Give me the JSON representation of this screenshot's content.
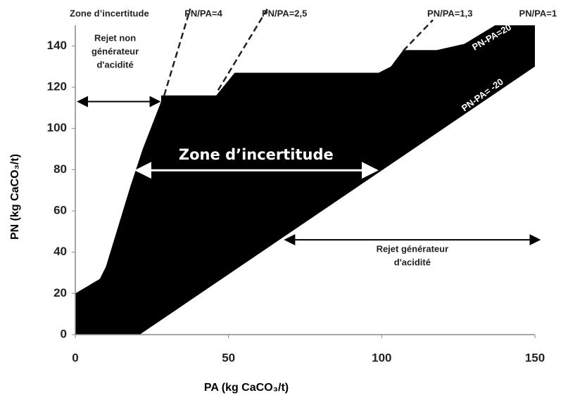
{
  "chart_data": {
    "type": "area",
    "xlabel": "PA (kg CaCO₃/t)",
    "ylabel": "PN (kg CaCO₃/t)",
    "xlim": [
      0,
      150
    ],
    "ylim": [
      0,
      150
    ],
    "xticks": [
      0,
      50,
      100,
      150
    ],
    "yticks": [
      0,
      20,
      40,
      60,
      80,
      100,
      120,
      140
    ],
    "series": [
      {
        "name": "Zone d’incertitude",
        "color": "#000000",
        "kind": "region",
        "x": [
          0,
          8,
          10,
          18,
          22,
          28,
          28,
          46,
          52,
          99,
          103,
          107,
          118,
          127,
          137,
          150,
          150,
          21,
          0
        ],
        "values": [
          20,
          27,
          33,
          72,
          90,
          113,
          116,
          116,
          127,
          127,
          130,
          138,
          138,
          141,
          150,
          150,
          130,
          0,
          0
        ]
      },
      {
        "name": "PN/PA=4",
        "color": "#222222",
        "kind": "dashed",
        "x": [
          29,
          37.5
        ],
        "values": [
          116,
          158
        ]
      },
      {
        "name": "PN/PA=2,5",
        "color": "#222222",
        "kind": "dashed",
        "x": [
          46.6,
          62.7
        ],
        "values": [
          118.5,
          158
        ]
      },
      {
        "name": "PN/PA=1,3",
        "color": "#222222",
        "kind": "dashed",
        "x": [
          107,
          116.7
        ],
        "values": [
          137.6,
          152.6
        ]
      },
      {
        "name": "PN/PA=1",
        "color": "#222222",
        "kind": "label",
        "x": [
          151
        ],
        "values": [
          157
        ]
      }
    ],
    "annotations": [
      {
        "lines": [
          "Rejet non",
          "générateur",
          "d'acidité"
        ],
        "x": 13,
        "y": 137,
        "color": "#222222"
      },
      {
        "lines": [
          "Zone d’incertitude"
        ],
        "x": 59,
        "y": 87,
        "color": "#ffffff",
        "big": true
      },
      {
        "lines": [
          "Rejet générateur",
          "d'acidité"
        ],
        "x": 110,
        "y": 38,
        "color": "#222222"
      },
      {
        "lines": [
          "PN-PA=20"
        ],
        "x": 136,
        "y": 144,
        "color": "#ffffff",
        "rotate": -30
      },
      {
        "lines": [
          "PN-PA= -20"
        ],
        "x": 133,
        "y": 116,
        "color": "#ffffff",
        "rotate": -36
      }
    ],
    "arrows": [
      {
        "x": [
          1.4,
          27
        ],
        "y": 113,
        "color": "#000000"
      },
      {
        "x": [
          20.7,
          97.6
        ],
        "y": 79.7,
        "color": "#ffffff"
      },
      {
        "x": [
          69,
          151
        ],
        "y": 46,
        "color": "#000000"
      }
    ]
  }
}
